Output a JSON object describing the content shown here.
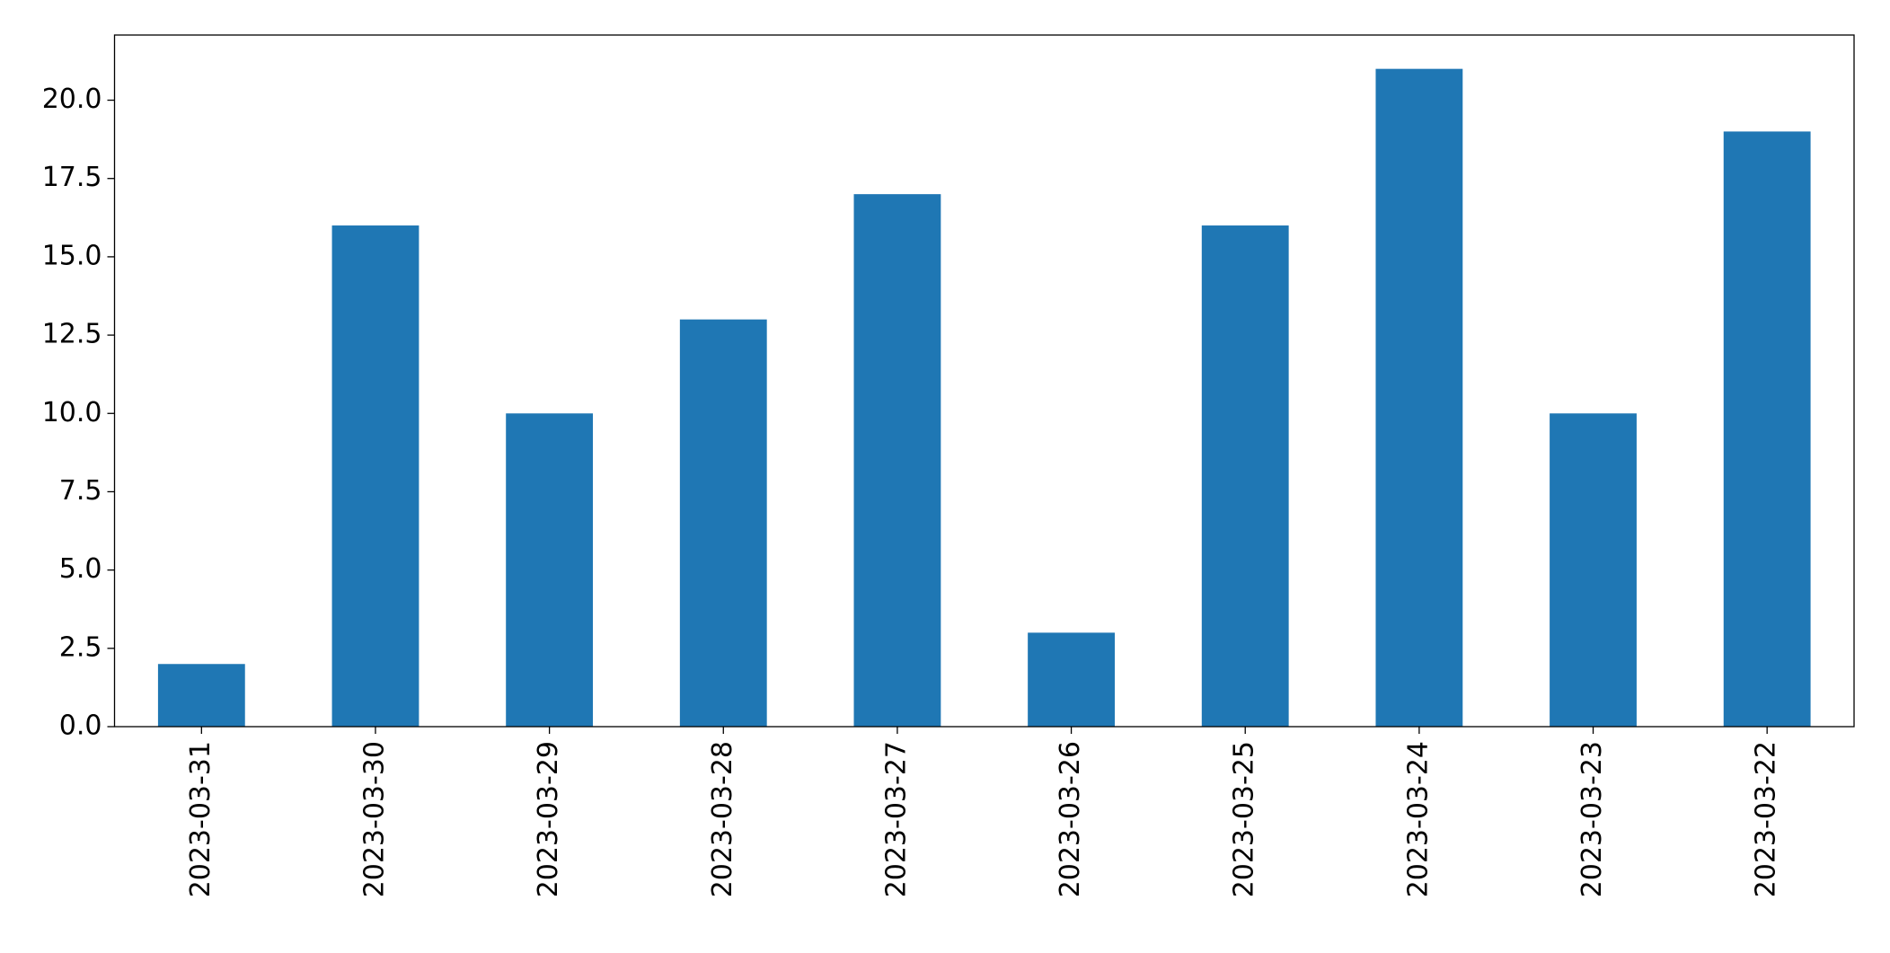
{
  "chart_data": {
    "type": "bar",
    "categories": [
      "2023-03-31",
      "2023-03-30",
      "2023-03-29",
      "2023-03-28",
      "2023-03-27",
      "2023-03-26",
      "2023-03-25",
      "2023-03-24",
      "2023-03-23",
      "2023-03-22"
    ],
    "values": [
      2,
      16,
      10,
      13,
      17,
      3,
      16,
      21,
      10,
      19
    ],
    "color": "#1f77b4",
    "ylim": [
      0,
      22.08
    ],
    "yticks": [
      {
        "value": 0,
        "label": "0.0"
      },
      2.5,
      {
        "value": 5,
        "label": "5.0"
      },
      7.5,
      {
        "value": 10,
        "label": "10.0"
      },
      12.5,
      {
        "value": 15,
        "label": "15.0"
      },
      17.5,
      {
        "value": 20,
        "label": "20.0"
      }
    ],
    "grid": false
  }
}
